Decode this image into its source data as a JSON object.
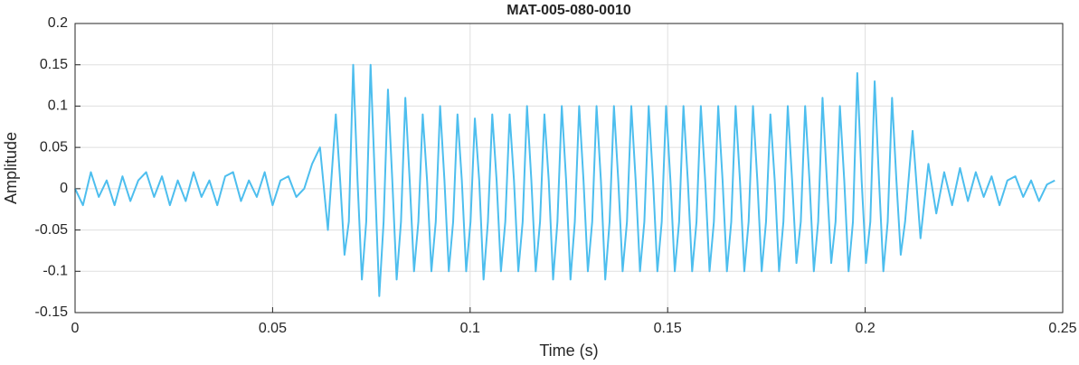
{
  "chart_data": {
    "type": "line",
    "title": "MAT-005-080-0010",
    "xlabel": "Time (s)",
    "ylabel": "Amplitude",
    "color": "#4dbeee",
    "grid": true,
    "xlim": [
      0,
      0.25
    ],
    "xticks": [
      0,
      0.05,
      0.1,
      0.15,
      0.2,
      0.25
    ],
    "ylim": [
      -0.15,
      0.2
    ],
    "yticks": [
      -0.15,
      -0.1,
      -0.05,
      0,
      0.05,
      0.1,
      0.15,
      0.2
    ],
    "x": [
      0,
      0.002,
      0.004,
      0.006,
      0.008,
      0.01,
      0.012,
      0.014,
      0.016,
      0.018,
      0.02,
      0.022,
      0.024,
      0.026,
      0.028,
      0.03,
      0.032,
      0.034,
      0.036,
      0.038,
      0.04,
      0.042,
      0.044,
      0.046,
      0.048,
      0.05,
      0.052,
      0.054,
      0.056,
      0.058,
      0.06,
      0.062,
      0.064,
      0.066,
      0.0671,
      0.0682,
      0.0693,
      0.0704,
      0.0715,
      0.0726,
      0.0737,
      0.0748,
      0.0759,
      0.077,
      0.0781,
      0.0792,
      0.0803,
      0.0814,
      0.0825,
      0.0836,
      0.0847,
      0.0858,
      0.0869,
      0.088,
      0.0891,
      0.0902,
      0.0913,
      0.0924,
      0.0935,
      0.0946,
      0.0957,
      0.0968,
      0.0979,
      0.099,
      0.1001,
      0.1012,
      0.1023,
      0.1034,
      0.1045,
      0.1056,
      0.1067,
      0.1078,
      0.1089,
      0.11,
      0.1111,
      0.1122,
      0.1133,
      0.1144,
      0.1155,
      0.1166,
      0.1177,
      0.1188,
      0.1199,
      0.121,
      0.1221,
      0.1232,
      0.1243,
      0.1254,
      0.1265,
      0.1276,
      0.1287,
      0.1298,
      0.1309,
      0.132,
      0.1331,
      0.1342,
      0.1353,
      0.1364,
      0.1375,
      0.1386,
      0.1397,
      0.1408,
      0.1419,
      0.143,
      0.1441,
      0.1452,
      0.1463,
      0.1474,
      0.1485,
      0.1496,
      0.1507,
      0.1518,
      0.1529,
      0.154,
      0.1551,
      0.1562,
      0.1573,
      0.1584,
      0.1595,
      0.1606,
      0.1617,
      0.1628,
      0.1639,
      0.165,
      0.1661,
      0.1672,
      0.1683,
      0.1694,
      0.1705,
      0.1716,
      0.1727,
      0.1738,
      0.1749,
      0.176,
      0.1771,
      0.1782,
      0.1793,
      0.1804,
      0.1815,
      0.1826,
      0.1837,
      0.1848,
      0.1859,
      0.187,
      0.1881,
      0.1892,
      0.1903,
      0.1914,
      0.1925,
      0.1936,
      0.1947,
      0.1958,
      0.1969,
      0.198,
      0.1991,
      0.2002,
      0.2013,
      0.2024,
      0.2035,
      0.2046,
      0.2057,
      0.2068,
      0.2079,
      0.209,
      0.2101,
      0.212,
      0.214,
      0.216,
      0.218,
      0.22,
      0.222,
      0.224,
      0.226,
      0.228,
      0.23,
      0.232,
      0.234,
      0.236,
      0.238,
      0.24,
      0.242,
      0.244,
      0.246,
      0.248
    ],
    "values": [
      0,
      -0.02,
      0.02,
      -0.01,
      0.01,
      -0.02,
      0.015,
      -0.015,
      0.01,
      0.02,
      -0.01,
      0.015,
      -0.02,
      0.01,
      -0.015,
      0.02,
      -0.01,
      0.01,
      -0.02,
      0.015,
      0.02,
      -0.015,
      0.01,
      -0.01,
      0.02,
      -0.02,
      0.01,
      0.015,
      -0.01,
      0,
      0.03,
      0.05,
      -0.05,
      0.09,
      0.01,
      -0.08,
      -0.04,
      0.15,
      0.01,
      -0.11,
      -0.04,
      0.15,
      0.01,
      -0.13,
      -0.04,
      0.12,
      0.01,
      -0.11,
      -0.04,
      0.11,
      0.01,
      -0.1,
      -0.04,
      0.09,
      0.01,
      -0.1,
      -0.04,
      0.1,
      0.01,
      -0.1,
      -0.04,
      0.09,
      0.01,
      -0.1,
      -0.04,
      0.085,
      0.01,
      -0.11,
      -0.04,
      0.09,
      0.01,
      -0.1,
      -0.04,
      0.09,
      0.01,
      -0.1,
      -0.04,
      0.1,
      0.01,
      -0.1,
      -0.04,
      0.09,
      0.01,
      -0.11,
      -0.04,
      0.1,
      0.01,
      -0.11,
      -0.04,
      0.1,
      0.01,
      -0.1,
      -0.04,
      0.1,
      0.01,
      -0.11,
      -0.04,
      0.1,
      0.01,
      -0.1,
      -0.04,
      0.1,
      0.01,
      -0.1,
      -0.04,
      0.1,
      0.01,
      -0.1,
      -0.04,
      0.1,
      0.01,
      -0.1,
      -0.04,
      0.1,
      0.01,
      -0.1,
      -0.04,
      0.1,
      0.01,
      -0.1,
      -0.04,
      0.1,
      0.01,
      -0.1,
      -0.04,
      0.1,
      0.01,
      -0.1,
      -0.04,
      0.1,
      0.01,
      -0.1,
      -0.04,
      0.09,
      0.01,
      -0.1,
      -0.04,
      0.1,
      0.01,
      -0.09,
      -0.04,
      0.1,
      0.01,
      -0.1,
      -0.04,
      0.11,
      0.01,
      -0.09,
      -0.04,
      0.1,
      0.01,
      -0.1,
      -0.04,
      0.14,
      0.01,
      -0.09,
      -0.04,
      0.13,
      0.01,
      -0.1,
      -0.04,
      0.11,
      0.01,
      -0.08,
      -0.04,
      0.07,
      -0.06,
      0.03,
      -0.03,
      0.02,
      -0.02,
      0.025,
      -0.015,
      0.02,
      -0.01,
      0.015,
      -0.02,
      0.01,
      0.015,
      -0.01,
      0.01,
      -0.015,
      0.005,
      0.01
    ]
  }
}
